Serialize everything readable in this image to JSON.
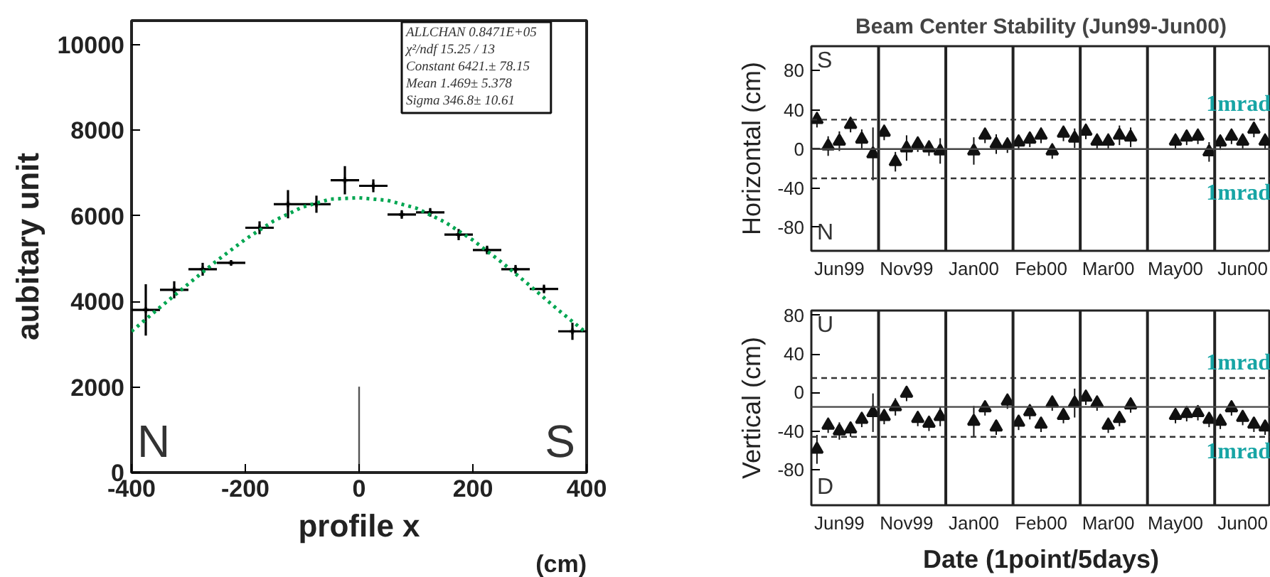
{
  "chart_data": [
    {
      "type": "scatter",
      "xlabel": "profile x",
      "ylabel": "aubitary unit",
      "xlim": [
        -400,
        400
      ],
      "ylim": [
        0,
        10560
      ],
      "xticks": [
        -400,
        -200,
        0,
        200,
        400
      ],
      "yticks": [
        0,
        2000,
        4000,
        6000,
        8000,
        10000
      ],
      "series": [
        {
          "color": "#000000",
          "marker": "cross",
          "x": [
            -375,
            -325,
            -275,
            -225,
            -175,
            -125,
            -75,
            -25,
            25,
            75,
            125,
            175,
            225,
            275,
            325,
            375
          ],
          "values": [
            3800,
            4270,
            4750,
            4900,
            5720,
            6270,
            6270,
            6830,
            6700,
            6030,
            6080,
            5560,
            5200,
            4750,
            4290,
            3300
          ],
          "errors": [
            600,
            200,
            150,
            50,
            150,
            330,
            200,
            330,
            150,
            100,
            100,
            130,
            100,
            100,
            100,
            200
          ],
          "xerrors": [
            25,
            25,
            25,
            25,
            25,
            25,
            25,
            25,
            25,
            25,
            25,
            25,
            25,
            25,
            25,
            25
          ]
        },
        {
          "type": "line",
          "color": "#00a651",
          "line_style": "dotted",
          "x": [
            -400,
            -350,
            -300,
            -250,
            -200,
            -150,
            -100,
            -50,
            0,
            50,
            100,
            150,
            200,
            250,
            300,
            350,
            400
          ],
          "values": [
            3300,
            3860,
            4410,
            4950,
            5450,
            5880,
            6200,
            6390,
            6420,
            6360,
            6180,
            5860,
            5430,
            4920,
            4370,
            3800,
            3260
          ]
        }
      ],
      "ref_lines": [
        {
          "axis": "x",
          "value": 0,
          "color": "#555555"
        }
      ],
      "annotations": [
        "N",
        "S",
        "ALLCHAN  0.8471E+05",
        "χ²/ndf   15.25  /  13",
        "Constant    6421.±   78.15",
        "Mean         1.469±   5.378",
        "Sigma        346.8±   10.61",
        "(cm)"
      ]
    },
    {
      "type": "scatter",
      "title": "Beam Center Stability (Jun99-Jun00)",
      "ylabel": "Horizontal (cm)",
      "marker": "triangle",
      "ylim": [
        -104,
        105
      ],
      "categories": [
        null,
        null,
        "Jun99",
        null,
        null,
        null,
        null,
        null,
        "Nov99",
        null,
        null,
        null,
        null,
        null,
        "Jan00",
        null,
        null,
        null,
        null,
        null,
        "Feb00",
        null,
        null,
        null,
        null,
        null,
        "Mar00",
        null,
        null,
        null,
        null,
        null,
        "May00",
        null,
        null,
        null,
        null,
        null,
        "Jun00",
        null,
        null
      ],
      "yticks": [
        -80,
        -40,
        0,
        40,
        80
      ],
      "series": [
        {
          "color": "#111111",
          "values": [
            30,
            3,
            8,
            25,
            10,
            -5,
            17,
            -13,
            1,
            5,
            1,
            -2,
            null,
            null,
            -2,
            14,
            5,
            4,
            7,
            10,
            14,
            -2,
            16,
            11,
            18,
            8,
            8,
            14,
            12,
            null,
            null,
            null,
            8,
            12,
            13,
            -3,
            7,
            13,
            8,
            20,
            8
          ],
          "errors": [
            8,
            10,
            10,
            8,
            10,
            27,
            8,
            10,
            13,
            8,
            8,
            13,
            null,
            null,
            14,
            8,
            10,
            8,
            8,
            8,
            8,
            8,
            8,
            10,
            8,
            8,
            8,
            10,
            10,
            null,
            null,
            null,
            8,
            8,
            8,
            10,
            8,
            8,
            8,
            8,
            8
          ]
        }
      ],
      "ref_lines": [
        {
          "axis": "y",
          "value": 30,
          "label": "1mrad",
          "color": "#333333",
          "line_style": "dashed"
        },
        {
          "axis": "y",
          "value": -30,
          "label": "1mrad",
          "color": "#333333",
          "line_style": "dashed"
        },
        {
          "axis": "y",
          "value": 0,
          "color": "#444444"
        }
      ],
      "annotations": [
        "S",
        "N"
      ]
    },
    {
      "type": "scatter",
      "xlabel": "Date (1point/5days)",
      "ylabel": "Vertical (cm)",
      "marker": "triangle",
      "ylim": [
        -117,
        85
      ],
      "categories": [
        null,
        null,
        "Jun99",
        null,
        null,
        null,
        null,
        null,
        "Nov99",
        null,
        null,
        null,
        null,
        null,
        "Jan00",
        null,
        null,
        null,
        null,
        null,
        "Feb00",
        null,
        null,
        null,
        null,
        null,
        "Mar00",
        null,
        null,
        null,
        null,
        null,
        "May00",
        null,
        null,
        null,
        null,
        null,
        "Jun00",
        null,
        null
      ],
      "yticks": [
        -80,
        -40,
        0,
        40,
        80
      ],
      "series": [
        {
          "color": "#111111",
          "values": [
            -59,
            -34,
            -40,
            -38,
            -28,
            -21,
            -25,
            -15,
            -1,
            -27,
            -32,
            -25,
            null,
            null,
            -30,
            -16,
            -36,
            -9,
            -31,
            -20,
            -33,
            -11,
            -24,
            -11,
            -5,
            -11,
            -34,
            -27,
            -13,
            null,
            null,
            null,
            -24,
            -22,
            -21,
            -28,
            -30,
            -16,
            -26,
            -33,
            -36
          ],
          "errors": [
            15,
            8,
            9,
            8,
            8,
            20,
            8,
            9,
            8,
            8,
            8,
            10,
            null,
            null,
            16,
            8,
            8,
            8,
            8,
            8,
            8,
            8,
            8,
            15,
            8,
            8,
            8,
            8,
            8,
            null,
            null,
            null,
            8,
            8,
            8,
            8,
            8,
            8,
            8,
            8,
            8
          ]
        }
      ],
      "ref_lines": [
        {
          "axis": "y",
          "value": 15,
          "label": "1mrad",
          "color": "#333333",
          "line_style": "dashed"
        },
        {
          "axis": "y",
          "value": -46,
          "label": "1mrad",
          "color": "#333333",
          "line_style": "dashed"
        },
        {
          "axis": "y",
          "value": -15,
          "color": "#444444"
        }
      ],
      "annotations": [
        "U",
        "D"
      ]
    }
  ]
}
